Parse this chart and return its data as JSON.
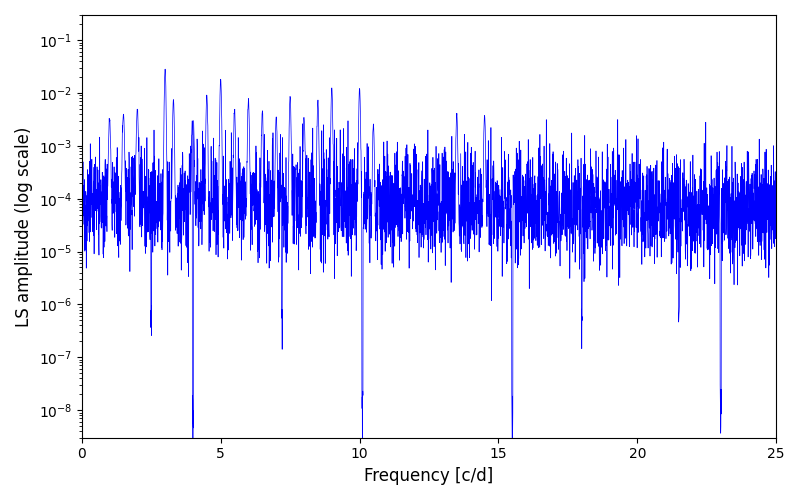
{
  "line_color": "#0000FF",
  "xlabel": "Frequency [c/d]",
  "ylabel": "LS amplitude (log scale)",
  "xlim": [
    0,
    25
  ],
  "ylim": [
    3e-09,
    0.3
  ],
  "background_color": "#ffffff",
  "figsize": [
    8.0,
    5.0
  ],
  "dpi": 100
}
